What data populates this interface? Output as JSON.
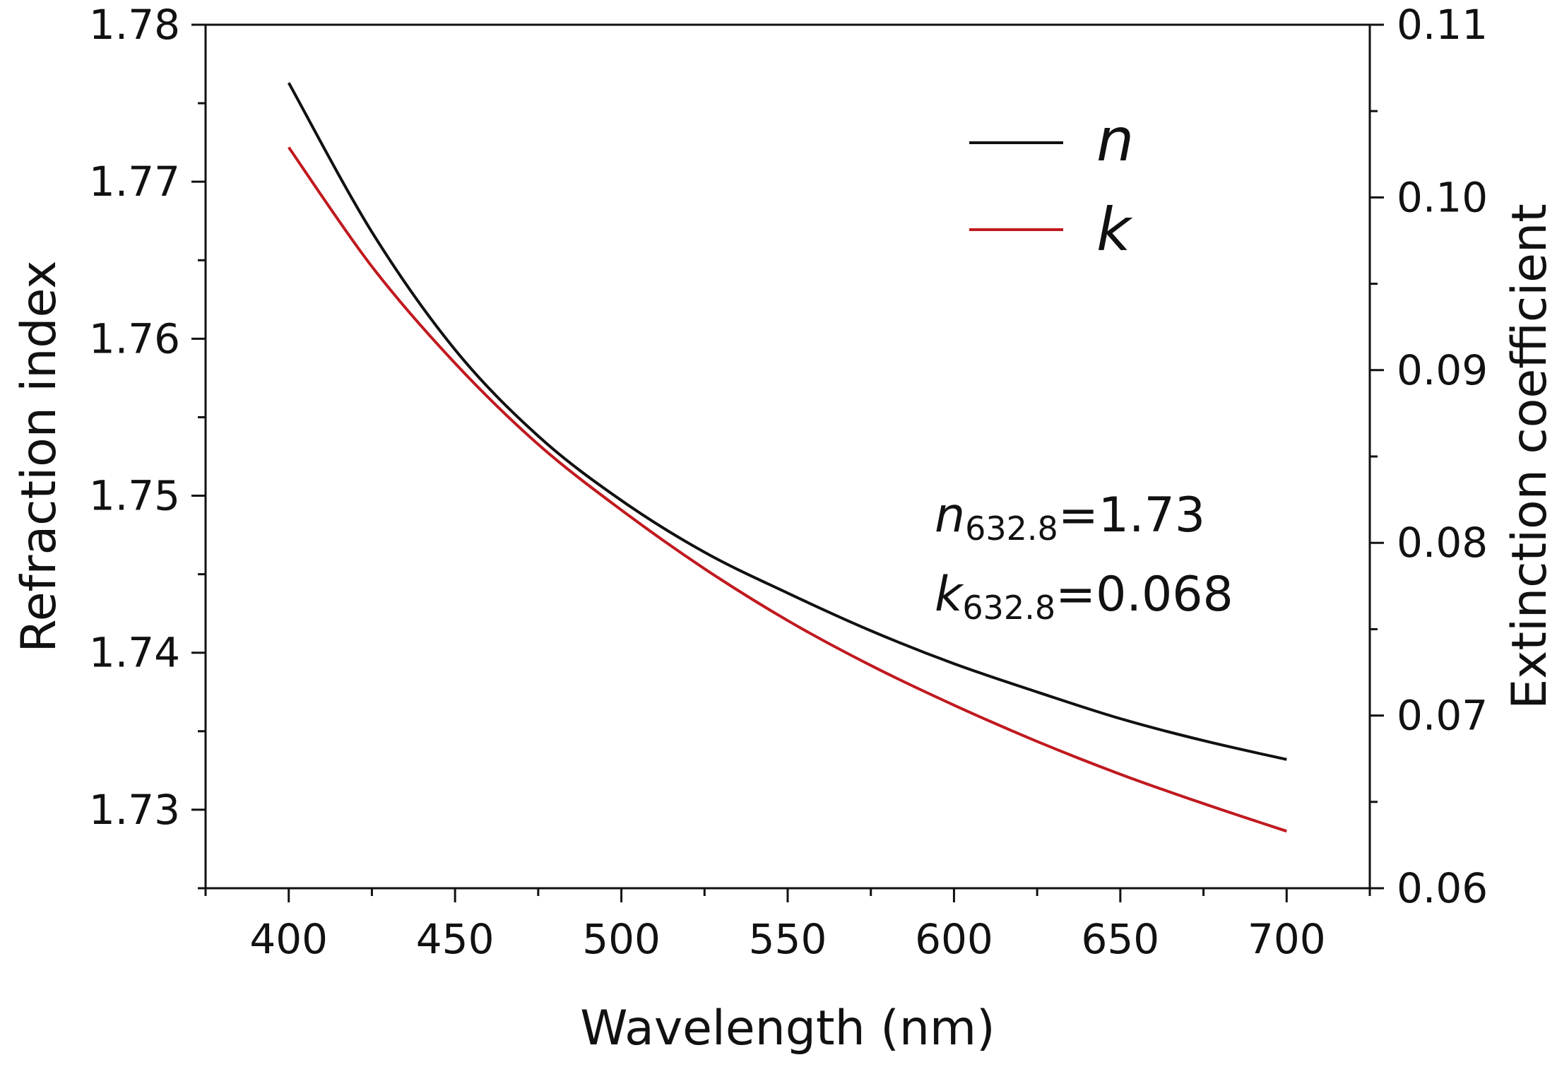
{
  "chart_data": {
    "type": "line",
    "title": "",
    "xlabel": "Wavelength (nm)",
    "ylabel": "Refraction index",
    "y2label": "Extinction coefficient",
    "xlim": [
      375,
      725
    ],
    "ylim": [
      1.725,
      1.78
    ],
    "y2lim": [
      0.06,
      0.11
    ],
    "xticks": [
      "400",
      "450",
      "500",
      "550",
      "600",
      "650",
      "700"
    ],
    "xtick_values": [
      400,
      450,
      500,
      550,
      600,
      650,
      700
    ],
    "yticks": [
      "1.73",
      "1.74",
      "1.75",
      "1.76",
      "1.77",
      "1.78"
    ],
    "ytick_values": [
      1.73,
      1.74,
      1.75,
      1.76,
      1.77,
      1.78
    ],
    "y2ticks": [
      "0.06",
      "0.07",
      "0.08",
      "0.09",
      "0.10",
      "0.11"
    ],
    "y2tick_values": [
      0.06,
      0.07,
      0.08,
      0.09,
      0.1,
      0.11
    ],
    "grid": false,
    "legend_position": "top-right",
    "series": [
      {
        "name": "n",
        "axis": "left",
        "color": "#111111",
        "x": [
          400,
          425,
          450,
          475,
          500,
          525,
          550,
          575,
          600,
          625,
          650,
          675,
          700
        ],
        "values": [
          1.7763,
          1.7668,
          1.7593,
          1.7538,
          1.7497,
          1.7464,
          1.7438,
          1.7414,
          1.7393,
          1.7375,
          1.7358,
          1.7344,
          1.7332
        ]
      },
      {
        "name": "k",
        "axis": "right",
        "color": "#c0191f",
        "x": [
          400,
          425,
          450,
          475,
          500,
          525,
          550,
          575,
          600,
          625,
          650,
          675,
          700
        ],
        "values": [
          0.1029,
          0.096,
          0.0904,
          0.0857,
          0.0819,
          0.0785,
          0.0755,
          0.0729,
          0.0706,
          0.0685,
          0.0666,
          0.0649,
          0.0633
        ]
      }
    ],
    "annotations": [
      {
        "symbol": "n",
        "subscript": "632.8",
        "text": "=1.73"
      },
      {
        "symbol": "k",
        "subscript": "632.8",
        "text": "=0.068"
      }
    ]
  }
}
